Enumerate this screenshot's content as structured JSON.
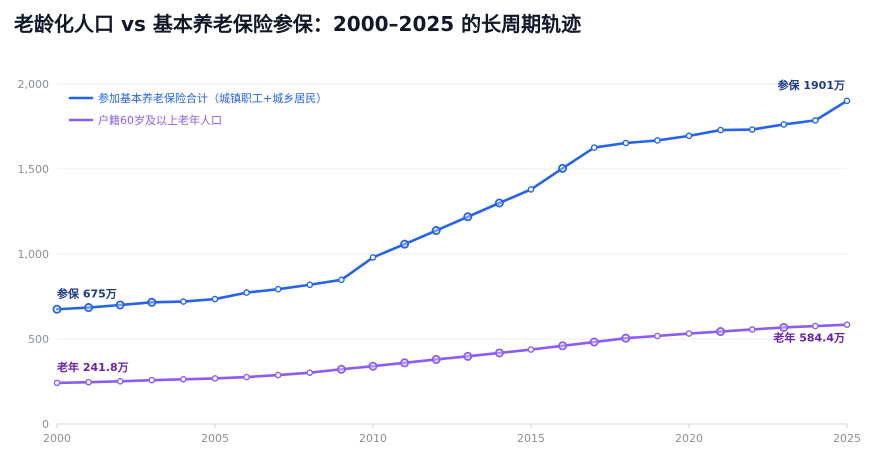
{
  "chart_data": {
    "type": "line",
    "title": "老龄化人口 vs 基本养老保险参保：2000–2025 的长周期轨迹",
    "xlabel": "",
    "ylabel": "",
    "x": [
      2000,
      2001,
      2002,
      2003,
      2004,
      2005,
      2006,
      2007,
      2008,
      2009,
      2010,
      2011,
      2012,
      2013,
      2014,
      2015,
      2016,
      2017,
      2018,
      2019,
      2020,
      2021,
      2022,
      2023,
      2024,
      2025
    ],
    "xlim": [
      2000,
      2025
    ],
    "ylim": [
      0,
      2000
    ],
    "x_ticks": [
      "2000",
      "2005",
      "2010",
      "2015",
      "2020",
      "2025"
    ],
    "y_ticks": [
      "0",
      "500",
      "1,000",
      "1,500",
      "2,000"
    ],
    "grid": "horizontal",
    "legend_position": "top-left",
    "series": [
      {
        "name": "参加基本养老保险合计（城镇职工+城乡居民）",
        "color": "#2563eb",
        "values": [
          675,
          685,
          700,
          716,
          720,
          735,
          773,
          793,
          819,
          848,
          980,
          1058,
          1138,
          1219,
          1300,
          1380,
          1504,
          1626,
          1653,
          1668,
          1695,
          1729,
          1732,
          1762,
          1786,
          1901
        ],
        "big_markers": [
          0,
          1,
          2,
          3,
          11,
          12,
          13,
          14,
          16
        ]
      },
      {
        "name": "户籍60岁及以上老年人口",
        "color": "#8b5cf6",
        "values": [
          241.8,
          246,
          251,
          258,
          263,
          268,
          276,
          288,
          302,
          322,
          340,
          360,
          380,
          398,
          418,
          438,
          460,
          482,
          505,
          518,
          532,
          544,
          556,
          568,
          576,
          584.4
        ],
        "big_markers": [
          9,
          10,
          11,
          12,
          13,
          14,
          16,
          17,
          18,
          21,
          23
        ]
      }
    ],
    "annotations": [
      {
        "text": "参保 675万",
        "series": 0,
        "index": 0,
        "color": "#1e3a8a"
      },
      {
        "text": "参保 1901万",
        "series": 0,
        "index": 25,
        "color": "#1e3a8a"
      },
      {
        "text": "老年 241.8万",
        "series": 1,
        "index": 0,
        "color": "#6b21a8"
      },
      {
        "text": "老年 584.4万",
        "series": 1,
        "index": 25,
        "color": "#6b21a8"
      }
    ]
  }
}
